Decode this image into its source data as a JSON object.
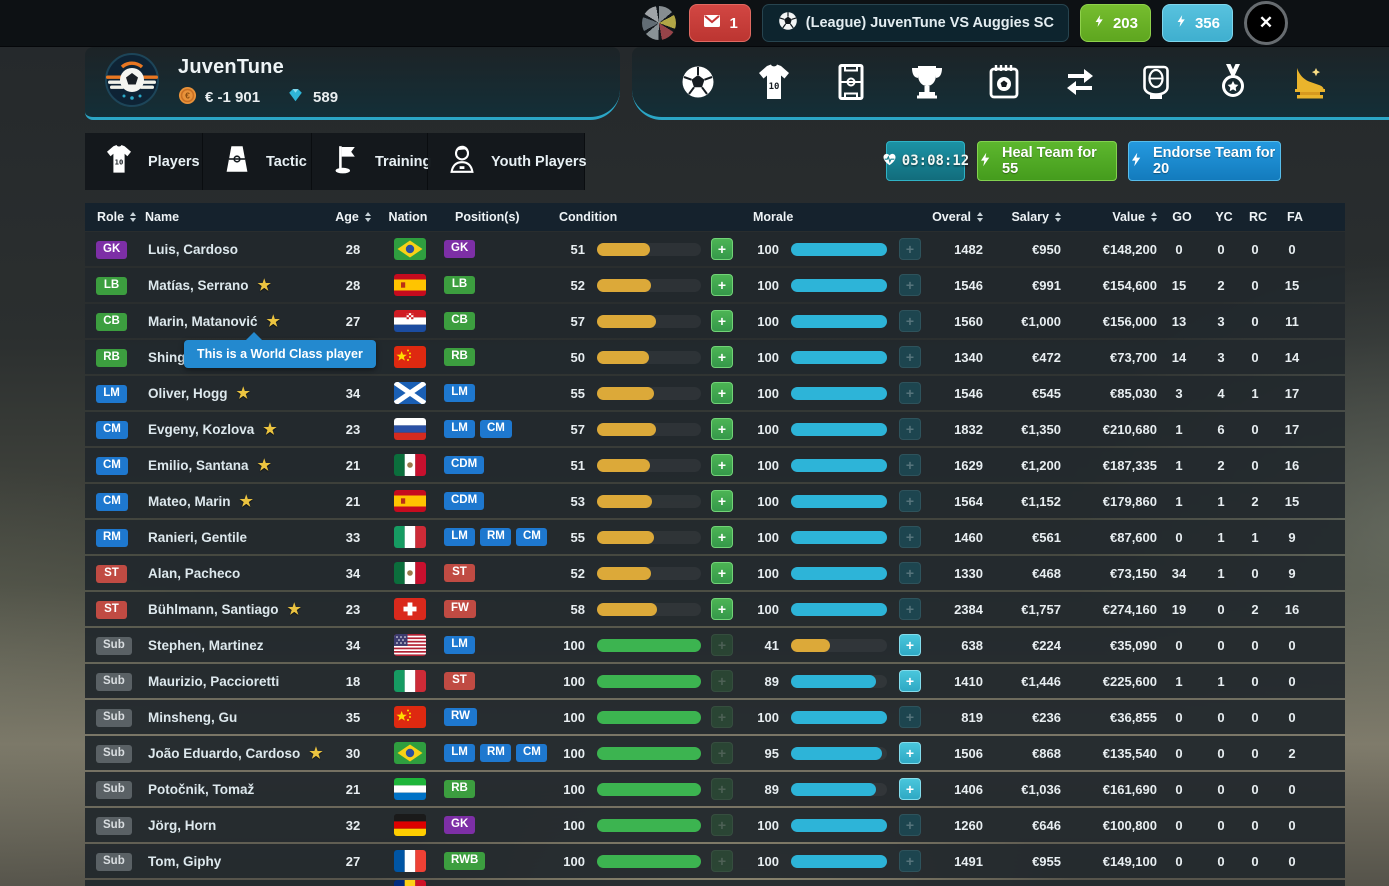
{
  "topbar": {
    "mail_count": "1",
    "match_label": "(League) JuvenTune VS Auggies SC",
    "energy_green": "203",
    "energy_cyan": "356"
  },
  "team": {
    "name": "JuvenTune",
    "money": "€ -1 901",
    "gems": "589"
  },
  "nav": {
    "items": [
      "ball-icon",
      "jersey-icon",
      "pitch-icon",
      "trophy-icon",
      "calendar-icon",
      "transfers-icon",
      "stadium-icon",
      "medal-icon",
      "golden-boot-icon"
    ],
    "active_icon": "golden-boot-icon"
  },
  "tabs": [
    {
      "label": "Players",
      "icon": "jersey-icon"
    },
    {
      "label": "Tactic",
      "icon": "tactic-icon"
    },
    {
      "label": "Training",
      "icon": "flag-icon"
    },
    {
      "label": "Youth Players",
      "icon": "youth-icon"
    }
  ],
  "actions": {
    "timer": "03:08:12",
    "heal_label": "Heal Team for 55",
    "endorse_label": "Endorse Team for 20"
  },
  "tooltip": {
    "text": "This is a World Class player"
  },
  "icons": {
    "close": "✕",
    "star": "★",
    "plus": "+"
  },
  "colors": {
    "badge": {
      "purple": "#7d2fa6",
      "green": "#3c9e3f",
      "blue": "#1e78cf",
      "red": "#c04b43",
      "gray": "#5a6165"
    },
    "bar": {
      "yellow": "#dca939",
      "green": "#3cb450",
      "cyan": "#2db4d8"
    },
    "accent_teal": "#2ba6c6",
    "gold": "#eab42c"
  },
  "table": {
    "headers": [
      {
        "label": "Role",
        "sort": true
      },
      {
        "label": "Name",
        "sort": false
      },
      {
        "label": "Age",
        "sort": true
      },
      {
        "label": "Nation",
        "sort": false
      },
      {
        "label": "Position(s)",
        "sort": false
      },
      {
        "label": "Condition",
        "sort": false
      },
      {
        "label": "Morale",
        "sort": false
      },
      {
        "label": "Overal",
        "sort": true
      },
      {
        "label": "Salary",
        "sort": true
      },
      {
        "label": "Value",
        "sort": true
      },
      {
        "label": "GO",
        "sort": false
      },
      {
        "label": "YC",
        "sort": false
      },
      {
        "label": "RC",
        "sort": false
      },
      {
        "label": "FA",
        "sort": false
      }
    ],
    "rows": [
      {
        "role": "GK",
        "roleColor": "purple",
        "name": "Luis, Cardoso",
        "star": false,
        "age": "28",
        "nation": "brazil",
        "pos": [
          [
            "GK",
            "purple"
          ]
        ],
        "cond": 51,
        "condColor": "yellow",
        "condPlus": "green-on",
        "morale": 100,
        "moraleColor": "cyan",
        "moralePlus": "teal-dim",
        "ovr": "1482",
        "sal": "€950",
        "val": "€148,200",
        "go": "0",
        "yc": "0",
        "rc": "0",
        "fa": "0"
      },
      {
        "role": "LB",
        "roleColor": "green",
        "name": "Matías, Serrano",
        "star": true,
        "age": "28",
        "nation": "spain",
        "pos": [
          [
            "LB",
            "green"
          ]
        ],
        "cond": 52,
        "condColor": "yellow",
        "condPlus": "green-on",
        "morale": 100,
        "moraleColor": "cyan",
        "moralePlus": "teal-dim",
        "ovr": "1546",
        "sal": "€991",
        "val": "€154,600",
        "go": "15",
        "yc": "2",
        "rc": "0",
        "fa": "15"
      },
      {
        "role": "CB",
        "roleColor": "green",
        "name": "Marin, Matanović",
        "star": true,
        "age": "27",
        "nation": "croatia",
        "pos": [
          [
            "CB",
            "green"
          ]
        ],
        "cond": 57,
        "condColor": "yellow",
        "condPlus": "green-on",
        "morale": 100,
        "moraleColor": "cyan",
        "moralePlus": "teal-dim",
        "ovr": "1560",
        "sal": "€1,000",
        "val": "€156,000",
        "go": "13",
        "yc": "3",
        "rc": "0",
        "fa": "11"
      },
      {
        "role": "RB",
        "roleColor": "green",
        "name": "Shing",
        "star": false,
        "age": "34",
        "nation": "china",
        "pos": [
          [
            "RB",
            "green"
          ]
        ],
        "cond": 50,
        "condColor": "yellow",
        "condPlus": "green-on",
        "morale": 100,
        "moraleColor": "cyan",
        "moralePlus": "teal-dim",
        "ovr": "1340",
        "sal": "€472",
        "val": "€73,700",
        "go": "14",
        "yc": "3",
        "rc": "0",
        "fa": "14"
      },
      {
        "role": "LM",
        "roleColor": "blue",
        "name": "Oliver, Hogg",
        "star": true,
        "age": "34",
        "nation": "scotland",
        "pos": [
          [
            "LM",
            "blue"
          ]
        ],
        "cond": 55,
        "condColor": "yellow",
        "condPlus": "green-on",
        "morale": 100,
        "moraleColor": "cyan",
        "moralePlus": "teal-dim",
        "ovr": "1546",
        "sal": "€545",
        "val": "€85,030",
        "go": "3",
        "yc": "4",
        "rc": "1",
        "fa": "17"
      },
      {
        "role": "CM",
        "roleColor": "blue",
        "name": "Evgeny, Kozlova",
        "star": true,
        "age": "23",
        "nation": "russia",
        "pos": [
          [
            "LM",
            "blue"
          ],
          [
            "CM",
            "blue"
          ]
        ],
        "cond": 57,
        "condColor": "yellow",
        "condPlus": "green-on",
        "morale": 100,
        "moraleColor": "cyan",
        "moralePlus": "teal-dim",
        "ovr": "1832",
        "sal": "€1,350",
        "val": "€210,680",
        "go": "1",
        "yc": "6",
        "rc": "0",
        "fa": "17"
      },
      {
        "role": "CM",
        "roleColor": "blue",
        "name": "Emilio, Santana",
        "star": true,
        "age": "21",
        "nation": "mexico",
        "pos": [
          [
            "CDM",
            "blue"
          ]
        ],
        "cond": 51,
        "condColor": "yellow",
        "condPlus": "green-on",
        "morale": 100,
        "moraleColor": "cyan",
        "moralePlus": "teal-dim",
        "ovr": "1629",
        "sal": "€1,200",
        "val": "€187,335",
        "go": "1",
        "yc": "2",
        "rc": "0",
        "fa": "16"
      },
      {
        "role": "CM",
        "roleColor": "blue",
        "name": "Mateo, Marin",
        "star": true,
        "age": "21",
        "nation": "spain",
        "pos": [
          [
            "CDM",
            "blue"
          ]
        ],
        "cond": 53,
        "condColor": "yellow",
        "condPlus": "green-on",
        "morale": 100,
        "moraleColor": "cyan",
        "moralePlus": "teal-dim",
        "ovr": "1564",
        "sal": "€1,152",
        "val": "€179,860",
        "go": "1",
        "yc": "1",
        "rc": "2",
        "fa": "15"
      },
      {
        "role": "RM",
        "roleColor": "blue",
        "name": "Ranieri, Gentile",
        "star": false,
        "age": "33",
        "nation": "italy",
        "pos": [
          [
            "LM",
            "blue"
          ],
          [
            "RM",
            "blue"
          ],
          [
            "CM",
            "blue"
          ]
        ],
        "cond": 55,
        "condColor": "yellow",
        "condPlus": "green-on",
        "morale": 100,
        "moraleColor": "cyan",
        "moralePlus": "teal-dim",
        "ovr": "1460",
        "sal": "€561",
        "val": "€87,600",
        "go": "0",
        "yc": "1",
        "rc": "1",
        "fa": "9"
      },
      {
        "role": "ST",
        "roleColor": "red",
        "name": "Alan, Pacheco",
        "star": false,
        "age": "34",
        "nation": "mexico",
        "pos": [
          [
            "ST",
            "red"
          ]
        ],
        "cond": 52,
        "condColor": "yellow",
        "condPlus": "green-on",
        "morale": 100,
        "moraleColor": "cyan",
        "moralePlus": "teal-dim",
        "ovr": "1330",
        "sal": "€468",
        "val": "€73,150",
        "go": "34",
        "yc": "1",
        "rc": "0",
        "fa": "9"
      },
      {
        "role": "ST",
        "roleColor": "red",
        "name": "Bühlmann, Santiago",
        "star": true,
        "age": "23",
        "nation": "switzerland",
        "pos": [
          [
            "FW",
            "red"
          ]
        ],
        "cond": 58,
        "condColor": "yellow",
        "condPlus": "green-on",
        "morale": 100,
        "moraleColor": "cyan",
        "moralePlus": "teal-dim",
        "ovr": "2384",
        "sal": "€1,757",
        "val": "€274,160",
        "go": "19",
        "yc": "0",
        "rc": "2",
        "fa": "16"
      },
      {
        "role": "Sub",
        "roleColor": "gray",
        "name": "Stephen, Martinez",
        "star": false,
        "age": "34",
        "nation": "usa",
        "pos": [
          [
            "LM",
            "blue"
          ]
        ],
        "cond": 100,
        "condColor": "green",
        "condPlus": "green-off",
        "morale": 41,
        "moraleColor": "yellow",
        "moralePlus": "cyan-on",
        "ovr": "638",
        "sal": "€224",
        "val": "€35,090",
        "go": "0",
        "yc": "0",
        "rc": "0",
        "fa": "0"
      },
      {
        "role": "Sub",
        "roleColor": "gray",
        "name": "Maurizio, Paccioretti",
        "star": false,
        "age": "18",
        "nation": "italy",
        "pos": [
          [
            "ST",
            "red"
          ]
        ],
        "cond": 100,
        "condColor": "green",
        "condPlus": "green-off",
        "morale": 89,
        "moraleColor": "cyan",
        "moralePlus": "cyan-on",
        "ovr": "1410",
        "sal": "€1,446",
        "val": "€225,600",
        "go": "1",
        "yc": "1",
        "rc": "0",
        "fa": "0"
      },
      {
        "role": "Sub",
        "roleColor": "gray",
        "name": "Minsheng, Gu",
        "star": false,
        "age": "35",
        "nation": "china",
        "pos": [
          [
            "RW",
            "blue"
          ]
        ],
        "cond": 100,
        "condColor": "green",
        "condPlus": "green-off",
        "morale": 100,
        "moraleColor": "cyan",
        "moralePlus": "teal-dim",
        "ovr": "819",
        "sal": "€236",
        "val": "€36,855",
        "go": "0",
        "yc": "0",
        "rc": "0",
        "fa": "0"
      },
      {
        "role": "Sub",
        "roleColor": "gray",
        "name": "João Eduardo, Cardoso",
        "star": true,
        "age": "30",
        "nation": "brazil",
        "pos": [
          [
            "LM",
            "blue"
          ],
          [
            "RM",
            "blue"
          ],
          [
            "CM",
            "blue"
          ]
        ],
        "cond": 100,
        "condColor": "green",
        "condPlus": "green-off",
        "morale": 95,
        "moraleColor": "cyan",
        "moralePlus": "cyan-on",
        "ovr": "1506",
        "sal": "€868",
        "val": "€135,540",
        "go": "0",
        "yc": "0",
        "rc": "0",
        "fa": "2"
      },
      {
        "role": "Sub",
        "roleColor": "gray",
        "name": "Potočnik, Tomaž",
        "star": false,
        "age": "21",
        "nation": "sierra-leone",
        "pos": [
          [
            "RB",
            "green"
          ]
        ],
        "cond": 100,
        "condColor": "green",
        "condPlus": "green-off",
        "morale": 89,
        "moraleColor": "cyan",
        "moralePlus": "cyan-on",
        "ovr": "1406",
        "sal": "€1,036",
        "val": "€161,690",
        "go": "0",
        "yc": "0",
        "rc": "0",
        "fa": "0"
      },
      {
        "role": "Sub",
        "roleColor": "gray",
        "name": "Jörg, Horn",
        "star": false,
        "age": "32",
        "nation": "germany",
        "pos": [
          [
            "GK",
            "purple"
          ]
        ],
        "cond": 100,
        "condColor": "green",
        "condPlus": "green-off",
        "morale": 100,
        "moraleColor": "cyan",
        "moralePlus": "teal-dim",
        "ovr": "1260",
        "sal": "€646",
        "val": "€100,800",
        "go": "0",
        "yc": "0",
        "rc": "0",
        "fa": "0"
      },
      {
        "role": "Sub",
        "roleColor": "gray",
        "name": "Tom, Giphy",
        "star": false,
        "age": "27",
        "nation": "france",
        "pos": [
          [
            "RWB",
            "green"
          ]
        ],
        "cond": 100,
        "condColor": "green",
        "condPlus": "green-off",
        "morale": 100,
        "moraleColor": "cyan",
        "moralePlus": "teal-dim",
        "ovr": "1491",
        "sal": "€955",
        "val": "€149,100",
        "go": "0",
        "yc": "0",
        "rc": "0",
        "fa": "0"
      }
    ],
    "partial_row": {
      "nation": "romania"
    }
  }
}
